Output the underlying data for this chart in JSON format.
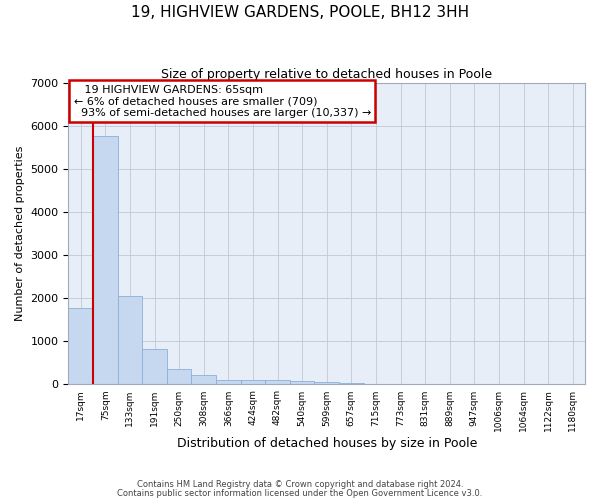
{
  "title": "19, HIGHVIEW GARDENS, POOLE, BH12 3HH",
  "subtitle": "Size of property relative to detached houses in Poole",
  "xlabel": "Distribution of detached houses by size in Poole",
  "ylabel": "Number of detached properties",
  "bar_color": "#c5d8f0",
  "bar_edge_color": "#8ab0d8",
  "highlight_line_color": "#cc0000",
  "background_color": "#e8eef8",
  "categories": [
    "17sqm",
    "75sqm",
    "133sqm",
    "191sqm",
    "250sqm",
    "308sqm",
    "366sqm",
    "424sqm",
    "482sqm",
    "540sqm",
    "599sqm",
    "657sqm",
    "715sqm",
    "773sqm",
    "831sqm",
    "889sqm",
    "947sqm",
    "1006sqm",
    "1064sqm",
    "1122sqm",
    "1180sqm"
  ],
  "values": [
    1780,
    5780,
    2060,
    820,
    360,
    230,
    115,
    100,
    100,
    80,
    50,
    30,
    20,
    0,
    0,
    0,
    0,
    0,
    0,
    0,
    0
  ],
  "ylim": [
    0,
    7000
  ],
  "yticks": [
    0,
    1000,
    2000,
    3000,
    4000,
    5000,
    6000,
    7000
  ],
  "property_label": "19 HIGHVIEW GARDENS: 65sqm",
  "pct_smaller": "6%",
  "n_smaller": 709,
  "pct_larger": "93%",
  "n_larger": 10337,
  "red_line_x": 0.5,
  "footer_line1": "Contains HM Land Registry data © Crown copyright and database right 2024.",
  "footer_line2": "Contains public sector information licensed under the Open Government Licence v3.0."
}
